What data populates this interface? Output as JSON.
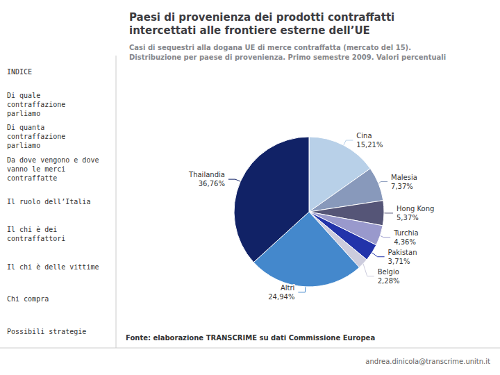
{
  "chart_data": {
    "type": "pie",
    "title": "Paesi di provenienza dei prodotti contraffatti\nintercettati alle frontiere esterne dell’UE",
    "subtitle": "Casi di sequestri alla dogana UE di merce contraffatta (mercato del 15).\nDistribuzione per paese di provenienza. Primo semestre 2009. Valori percentuali",
    "categories": [
      "Cina",
      "Malesia",
      "Hong Kong",
      "Turchia",
      "Pakistan",
      "Belgio",
      "Altri",
      "Thailandia"
    ],
    "values": [
      15.21,
      7.37,
      5.37,
      4.36,
      3.71,
      2.28,
      24.94,
      36.76
    ],
    "value_labels": [
      "15,21%",
      "7,37%",
      "5,37%",
      "4,36%",
      "3,71%",
      "2,28%",
      "24,94%",
      "36,76%"
    ],
    "colors": [
      "#b8d0e8",
      "#8899bb",
      "#555577",
      "#9999cc",
      "#2233aa",
      "#ccccdd",
      "#4488cc",
      "#112266"
    ],
    "data_labels": true,
    "annotations": [
      "Fonte: elaborazione TRANSCRIME su dati Commissione Europea",
      "andrea.dinicola@transcrime.unitn.it",
      "INDICE",
      "Di quale\ncontraffazione\nparliamo",
      "Di quanta\ncontraffazione\nparliamo",
      "Da dove vengono e dove\nvanno le merci\ncontraffatte",
      "Il ruolo dell’Italia",
      "Il chi è dei\ncontraffattori",
      "Il chi è delle vittime",
      "Chi compra",
      "Possibili strategie"
    ]
  }
}
